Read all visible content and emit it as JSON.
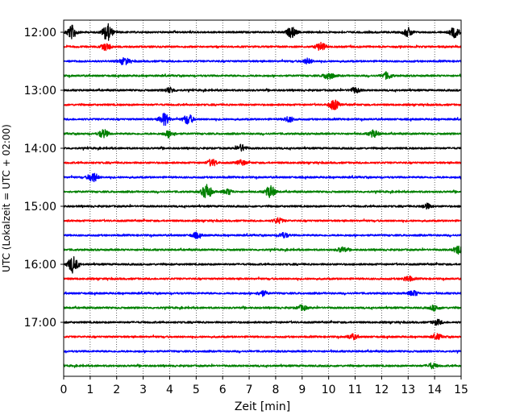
{
  "chart_data": {
    "type": "line",
    "title": "",
    "xlabel": "Zeit  [min]",
    "ylabel": "UTC (Lokalzeit = UTC + 02:00)",
    "xlim": [
      0,
      15
    ],
    "x_ticks": [
      0,
      1,
      2,
      3,
      4,
      5,
      6,
      7,
      8,
      9,
      10,
      11,
      12,
      13,
      14,
      15
    ],
    "y_tick_labels": [
      "12:00",
      "13:00",
      "14:00",
      "15:00",
      "16:00",
      "17:00"
    ],
    "vertical_grid": true,
    "trace_interval_minutes": 15,
    "trace_start": "12:00",
    "trace_colors": [
      "#000000",
      "#ff0000",
      "#0000ff",
      "#008000"
    ],
    "traces": [
      {
        "start": "12:00",
        "color": "#000000",
        "events": [
          {
            "x": 0.3,
            "amp": 8
          },
          {
            "x": 1.65,
            "amp": 10
          },
          {
            "x": 8.6,
            "amp": 6
          },
          {
            "x": 13.0,
            "amp": 5
          },
          {
            "x": 14.75,
            "amp": 6
          }
        ]
      },
      {
        "start": "12:15",
        "color": "#ff0000",
        "events": [
          {
            "x": 1.6,
            "amp": 4
          },
          {
            "x": 9.7,
            "amp": 5
          }
        ]
      },
      {
        "start": "12:30",
        "color": "#0000ff",
        "events": [
          {
            "x": 2.3,
            "amp": 4
          },
          {
            "x": 9.2,
            "amp": 3
          }
        ]
      },
      {
        "start": "12:45",
        "color": "#008000",
        "events": [
          {
            "x": 10.0,
            "amp": 5
          },
          {
            "x": 12.2,
            "amp": 4
          }
        ]
      },
      {
        "start": "13:00",
        "color": "#000000",
        "events": [
          {
            "x": 4.0,
            "amp": 3
          },
          {
            "x": 11.0,
            "amp": 3
          }
        ]
      },
      {
        "start": "13:15",
        "color": "#ff0000",
        "events": [
          {
            "x": 10.2,
            "amp": 6
          }
        ]
      },
      {
        "start": "13:30",
        "color": "#0000ff",
        "events": [
          {
            "x": 3.8,
            "amp": 7
          },
          {
            "x": 4.7,
            "amp": 6
          },
          {
            "x": 8.5,
            "amp": 3
          }
        ]
      },
      {
        "start": "13:45",
        "color": "#008000",
        "events": [
          {
            "x": 1.5,
            "amp": 5
          },
          {
            "x": 4.0,
            "amp": 4
          },
          {
            "x": 11.7,
            "amp": 4
          }
        ]
      },
      {
        "start": "14:00",
        "color": "#000000",
        "events": [
          {
            "x": 6.7,
            "amp": 4
          }
        ]
      },
      {
        "start": "14:15",
        "color": "#ff0000",
        "events": [
          {
            "x": 5.6,
            "amp": 4
          },
          {
            "x": 6.7,
            "amp": 3
          }
        ]
      },
      {
        "start": "14:30",
        "color": "#0000ff",
        "events": [
          {
            "x": 1.1,
            "amp": 6
          }
        ]
      },
      {
        "start": "14:45",
        "color": "#008000",
        "events": [
          {
            "x": 5.4,
            "amp": 9
          },
          {
            "x": 7.8,
            "amp": 7
          },
          {
            "x": 6.2,
            "amp": 3
          }
        ]
      },
      {
        "start": "15:00",
        "color": "#000000",
        "events": [
          {
            "x": 13.7,
            "amp": 3
          }
        ]
      },
      {
        "start": "15:15",
        "color": "#ff0000",
        "events": [
          {
            "x": 8.1,
            "amp": 3
          }
        ]
      },
      {
        "start": "15:30",
        "color": "#0000ff",
        "events": [
          {
            "x": 5.0,
            "amp": 3
          },
          {
            "x": 8.3,
            "amp": 3
          }
        ]
      },
      {
        "start": "15:45",
        "color": "#008000",
        "events": [
          {
            "x": 14.9,
            "amp": 5
          },
          {
            "x": 10.5,
            "amp": 3
          }
        ]
      },
      {
        "start": "16:00",
        "color": "#000000",
        "events": [
          {
            "x": 0.35,
            "amp": 10
          }
        ]
      },
      {
        "start": "16:15",
        "color": "#ff0000",
        "events": [
          {
            "x": 13.0,
            "amp": 3
          }
        ]
      },
      {
        "start": "16:30",
        "color": "#0000ff",
        "events": [
          {
            "x": 7.5,
            "amp": 3
          },
          {
            "x": 13.2,
            "amp": 3
          }
        ]
      },
      {
        "start": "16:45",
        "color": "#008000",
        "events": [
          {
            "x": 9.0,
            "amp": 3
          },
          {
            "x": 14.0,
            "amp": 3
          }
        ]
      },
      {
        "start": "17:00",
        "color": "#000000",
        "events": [
          {
            "x": 14.1,
            "amp": 3
          }
        ]
      },
      {
        "start": "17:15",
        "color": "#ff0000",
        "events": [
          {
            "x": 10.9,
            "amp": 3
          },
          {
            "x": 14.1,
            "amp": 3
          }
        ]
      },
      {
        "start": "17:30",
        "color": "#0000ff",
        "events": []
      },
      {
        "start": "17:45",
        "color": "#008000",
        "events": [
          {
            "x": 13.9,
            "amp": 3
          }
        ]
      }
    ]
  }
}
